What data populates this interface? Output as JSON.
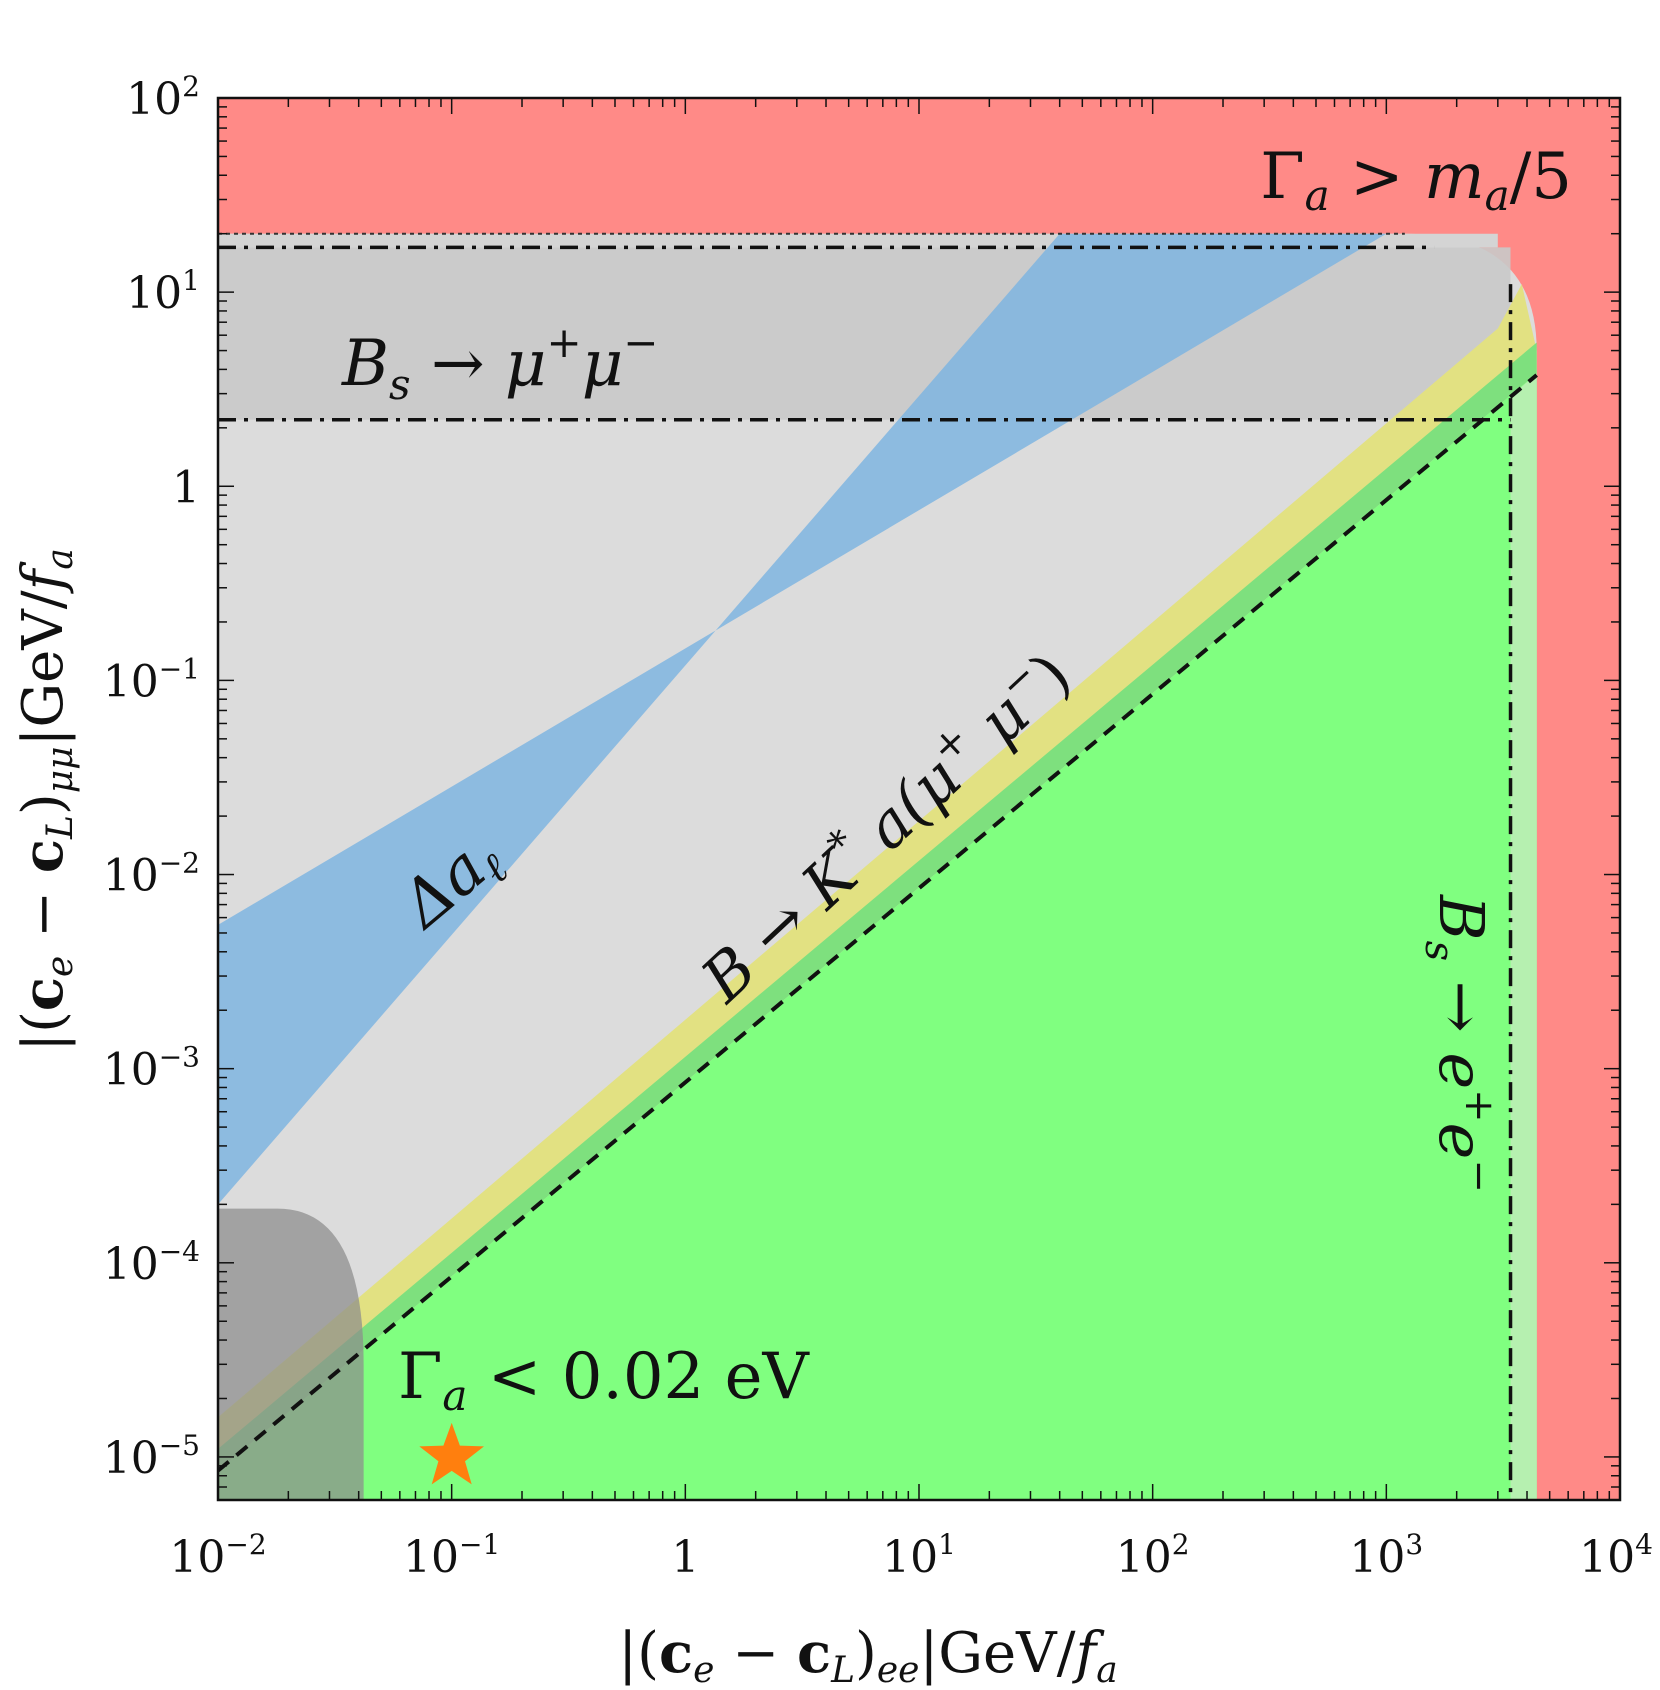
{
  "chart_data": {
    "type": "area",
    "xscale": "log",
    "yscale": "log",
    "xlim": [
      0.01,
      10000
    ],
    "ylim": [
      6e-06,
      100
    ],
    "xlabel": "|(c_e − c_L)_ee| GeV/f_a",
    "ylabel": "|(c_e − c_L)_μμ| GeV/f_a",
    "xticks": [
      {
        "value": 0.01,
        "base": "10",
        "exp": "−2"
      },
      {
        "value": 0.1,
        "base": "10",
        "exp": "−1"
      },
      {
        "value": 1,
        "base": "1",
        "exp": ""
      },
      {
        "value": 10,
        "base": "10",
        "exp": "1"
      },
      {
        "value": 100,
        "base": "10",
        "exp": "2"
      },
      {
        "value": 1000,
        "base": "10",
        "exp": "3"
      },
      {
        "value": 10000,
        "base": "10",
        "exp": "4"
      }
    ],
    "yticks": [
      {
        "value": 1e-05,
        "base": "10",
        "exp": "−5"
      },
      {
        "value": 0.0001,
        "base": "10",
        "exp": "−4"
      },
      {
        "value": 0.001,
        "base": "10",
        "exp": "−3"
      },
      {
        "value": 0.01,
        "base": "10",
        "exp": "−2"
      },
      {
        "value": 0.1,
        "base": "10",
        "exp": "−1"
      },
      {
        "value": 1,
        "base": "1",
        "exp": ""
      },
      {
        "value": 10,
        "base": "10",
        "exp": "1"
      },
      {
        "value": 100,
        "base": "10",
        "exp": "2"
      }
    ],
    "colors": {
      "width_excluded": "#ff8a87",
      "light_gray": "#dcdcdc",
      "dark_gray": "#c9c9c9",
      "corner_gray": "#8c8c8c",
      "blue_band": "#7fb5e0",
      "yellow_band": "#e2e182",
      "mid_green": "#7ee07e",
      "bright_green": "#80ff80",
      "pale_green": "#b6f0b0",
      "star": "#ff7f0e"
    },
    "regions": [
      {
        "name": "Γ_a > m_a/5",
        "color": "width_excluded",
        "boundary": "y ≥ 20 or x ≥ 4400"
      },
      {
        "name": "Δa_ℓ",
        "color": "blue_band",
        "band_y_over_x": [
          0.02,
          0.55
        ]
      },
      {
        "name": "B → K* a(μ+μ−)",
        "bands_y_over_x": {
          "yellow": [
            0.00085,
            0.0016
          ],
          "green": [
            0.00085,
            0.0011
          ]
        }
      },
      {
        "name": "B_s → μ+μ−",
        "y_lines": [
          2.2,
          17
        ],
        "color": "dark_gray"
      },
      {
        "name": "B_s → e+e−",
        "x_line": 3400
      },
      {
        "name": "Γ_a < 0.02 eV",
        "color": "bright_green",
        "y_over_x_max": 0.00085
      }
    ],
    "dashed_line": {
      "y_over_x": 0.00085
    },
    "benchmark_point": {
      "x": 0.1,
      "y": 1e-05,
      "marker": "star"
    }
  },
  "labels": {
    "width_upper": {
      "main": "Γ",
      "sub": "a",
      "rest": " > m",
      "sub2": "a",
      "tail": "/5"
    },
    "bs_mumu": {
      "a": "B",
      "s": "s",
      "b": " → μ",
      "p": "+",
      "c": "μ",
      "m": "−"
    },
    "delta_a": {
      "main": "Δa",
      "sub": "ℓ"
    },
    "bkstar": {
      "a": "B → K",
      "star": "*",
      "b": " a(μ",
      "p": "+",
      "c": " μ",
      "m": "−",
      "d": ")"
    },
    "bs_ee": {
      "a": "B",
      "s": "s",
      "b": " → e",
      "p": "+",
      "c": "e",
      "m": "−"
    },
    "width_lower": {
      "main": "Γ",
      "sub": "a",
      "rest": " < 0.02 eV"
    },
    "xaxis": {
      "open": "|(",
      "ce": "c",
      "ce_sub": "e",
      "minus": " − ",
      "cl": "c",
      "cl_sub": "L",
      "close": ")",
      "idx": "ee",
      "rest": "|GeV/",
      "f": "f",
      "f_sub": "a"
    },
    "yaxis": {
      "open": "|(",
      "ce": "c",
      "ce_sub": "e",
      "minus": " − ",
      "cl": "c",
      "cl_sub": "L",
      "close": ")",
      "idx": "μμ",
      "rest": "|GeV/",
      "f": "f",
      "f_sub": "a"
    }
  }
}
